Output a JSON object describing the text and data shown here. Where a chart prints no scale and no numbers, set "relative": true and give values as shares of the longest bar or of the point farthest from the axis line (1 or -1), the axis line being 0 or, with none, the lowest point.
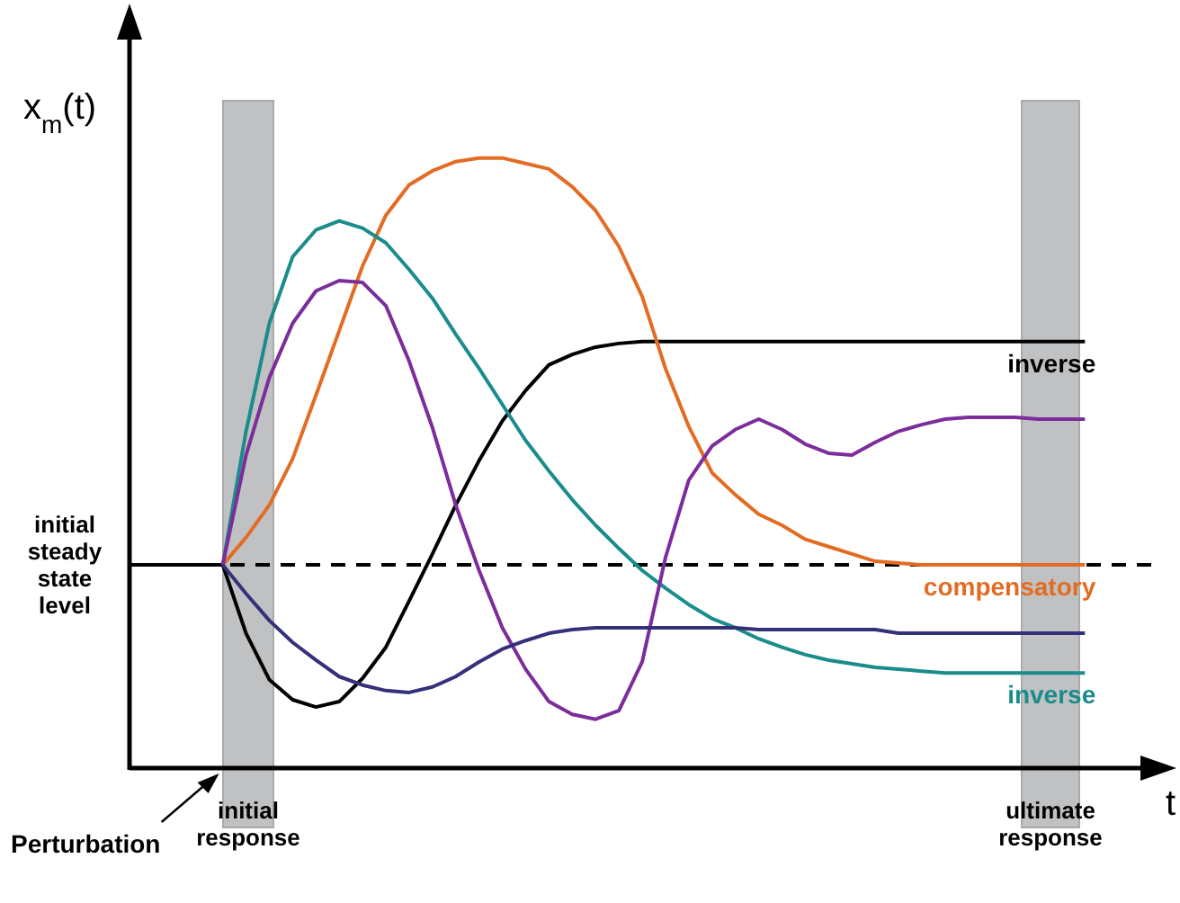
{
  "chart_data": {
    "type": "line",
    "relative": true,
    "xlabel": "t",
    "ylabel": "x$_{m}$(t)",
    "marker": "none",
    "categories": [
      null,
      null,
      null,
      null,
      null,
      null,
      null,
      null,
      null,
      null,
      null,
      null,
      null,
      null,
      null,
      null,
      null,
      null,
      null,
      null,
      null,
      null,
      null,
      null,
      null,
      null,
      null,
      null,
      null,
      null,
      null,
      null,
      null,
      null,
      null,
      null,
      null,
      null,
      null,
      null,
      null,
      null,
      null,
      null,
      null
    ],
    "annotations": [
      "Perturbation",
      "initial response",
      "ultimate response"
    ],
    "ref_lines": [
      {
        "axis": "y",
        "value": 0.333,
        "label": "initial steady state level",
        "line_style": "dashed",
        "color": "#000000"
      }
    ],
    "series": [
      {
        "name": "inverse",
        "color": "#000000",
        "values": [
          0.333,
          0.333,
          0.333,
          0.333,
          0.333,
          0.221,
          0.145,
          0.112,
          0.1,
          0.109,
          0.147,
          0.198,
          0.274,
          0.351,
          0.431,
          0.504,
          0.569,
          0.619,
          0.661,
          0.678,
          0.69,
          0.696,
          0.699,
          0.699,
          0.699,
          0.699,
          0.699,
          0.699,
          0.699,
          0.699,
          0.699,
          0.699,
          0.699,
          0.699,
          0.699,
          0.699,
          0.699,
          0.699,
          0.699,
          0.699,
          0.699,
          0.699,
          null,
          null,
          null
        ]
      },
      {
        "name": "compensatory",
        "color": "#e36c24",
        "values": [
          null,
          null,
          null,
          null,
          0.333,
          0.378,
          0.431,
          0.507,
          0.611,
          0.717,
          0.823,
          0.906,
          0.956,
          0.979,
          0.994,
          1,
          1,
          0.991,
          0.982,
          0.953,
          0.914,
          0.855,
          0.773,
          0.655,
          0.56,
          0.484,
          0.448,
          0.416,
          0.398,
          0.375,
          0.363,
          0.351,
          0.339,
          0.336,
          0.333,
          0.333,
          0.333,
          0.333,
          0.333,
          0.333,
          0.333,
          0.333,
          null,
          null,
          null
        ]
      },
      {
        "name": "inverse",
        "color": "#1a8c8c",
        "values": [
          null,
          null,
          null,
          null,
          0.333,
          0.552,
          0.729,
          0.838,
          0.882,
          0.897,
          0.885,
          0.861,
          0.817,
          0.77,
          0.711,
          0.655,
          0.596,
          0.537,
          0.487,
          0.44,
          0.398,
          0.36,
          0.324,
          0.295,
          0.268,
          0.245,
          0.23,
          0.212,
          0.198,
          0.186,
          0.177,
          0.171,
          0.165,
          0.162,
          0.159,
          0.156,
          0.156,
          0.156,
          0.156,
          0.156,
          0.156,
          0.156,
          null,
          null,
          null
        ]
      },
      {
        "color": "#7b2d9b",
        "values": [
          null,
          null,
          null,
          null,
          0.333,
          0.513,
          0.64,
          0.729,
          0.782,
          0.799,
          0.796,
          0.758,
          0.667,
          0.558,
          0.431,
          0.324,
          0.23,
          0.162,
          0.109,
          0.088,
          0.08,
          0.094,
          0.174,
          0.345,
          0.472,
          0.528,
          0.555,
          0.572,
          0.555,
          0.531,
          0.516,
          0.513,
          0.534,
          0.552,
          0.563,
          0.572,
          0.575,
          0.575,
          0.575,
          0.572,
          0.572,
          0.572,
          null,
          null,
          null
        ]
      },
      {
        "color": "#35307a",
        "values": [
          null,
          null,
          null,
          null,
          0.333,
          0.286,
          0.242,
          0.206,
          0.177,
          0.15,
          0.136,
          0.127,
          0.124,
          0.133,
          0.15,
          0.174,
          0.195,
          0.209,
          0.221,
          0.227,
          0.23,
          0.23,
          0.23,
          0.23,
          0.23,
          0.23,
          0.23,
          0.227,
          0.227,
          0.227,
          0.227,
          0.227,
          0.227,
          0.221,
          0.221,
          0.221,
          0.221,
          0.221,
          0.221,
          0.221,
          0.221,
          0.221,
          null,
          null,
          null
        ]
      }
    ]
  }
}
